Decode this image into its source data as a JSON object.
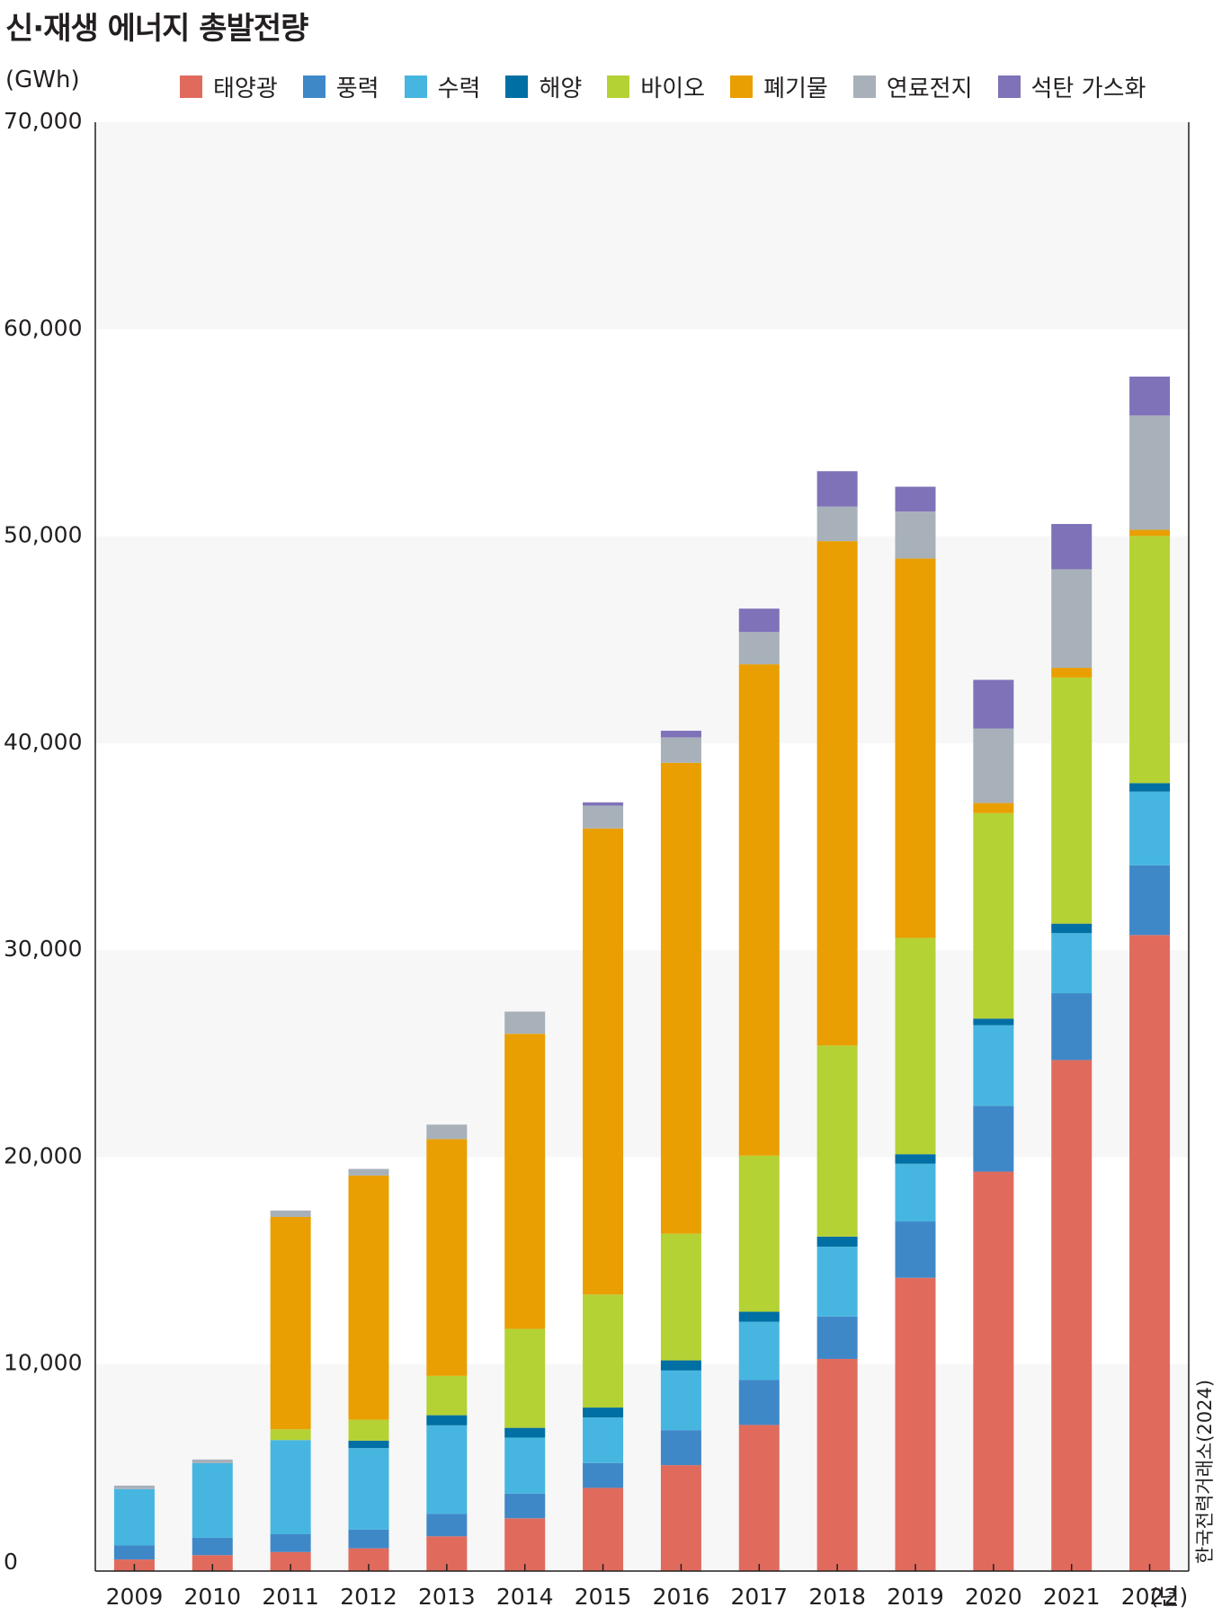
{
  "title": "신·재생 에너지 총발전량",
  "unit": "(GWh)",
  "source": "한국전력거래소(2024)",
  "chart_data": {
    "type": "bar",
    "stacked": true,
    "categories": [
      "2009",
      "2010",
      "2011",
      "2012",
      "2013",
      "2014",
      "2015",
      "2016",
      "2017",
      "2018",
      "2019",
      "2020",
      "2021",
      "2022"
    ],
    "x_unit": "(년)",
    "ylim": [
      0,
      70000
    ],
    "yticks": [
      0,
      10000,
      20000,
      30000,
      40000,
      50000,
      60000,
      70000
    ],
    "ytick_labels": [
      "0",
      "10,000",
      "20,000",
      "30,000",
      "40,000",
      "50,000",
      "60,000",
      "70,000"
    ],
    "legend_position": "top",
    "series": [
      {
        "name": "태양광",
        "color": "#e06b5d",
        "values": [
          560,
          770,
          920,
          1100,
          1680,
          2550,
          4020,
          5120,
          7060,
          10250,
          14170,
          19300,
          24690,
          30730
        ]
      },
      {
        "name": "풍력",
        "color": "#3f88c8",
        "values": [
          680,
          840,
          860,
          910,
          1090,
          1190,
          1200,
          1690,
          2170,
          2050,
          2720,
          3180,
          3230,
          3370
        ]
      },
      {
        "name": "수력",
        "color": "#46b6e0",
        "values": [
          2720,
          3600,
          4550,
          3930,
          4270,
          2710,
          2200,
          2880,
          2820,
          3370,
          2790,
          3890,
          2900,
          3560
        ]
      },
      {
        "name": "해양",
        "color": "#006fa3",
        "values": [
          0,
          0,
          0,
          360,
          490,
          470,
          480,
          490,
          480,
          490,
          460,
          320,
          460,
          410
        ]
      },
      {
        "name": "바이오",
        "color": "#b4d234",
        "values": [
          0,
          0,
          520,
          1010,
          1900,
          4780,
          5460,
          6120,
          7540,
          9230,
          10450,
          9930,
          11890,
          11940
        ]
      },
      {
        "name": "폐기물",
        "color": "#e99f02",
        "values": [
          0,
          0,
          10260,
          11800,
          11440,
          14260,
          22520,
          22750,
          23740,
          24370,
          18330,
          490,
          470,
          300
        ]
      },
      {
        "name": "연료전지",
        "color": "#a8b1ba",
        "values": [
          170,
          180,
          310,
          320,
          700,
          1070,
          1100,
          1230,
          1560,
          1670,
          2270,
          3600,
          4760,
          5520
        ]
      },
      {
        "name": "석탄 가스화",
        "color": "#7f72b9",
        "values": [
          0,
          0,
          0,
          0,
          0,
          0,
          160,
          320,
          1130,
          1710,
          1200,
          2350,
          2190,
          1880
        ]
      }
    ]
  }
}
